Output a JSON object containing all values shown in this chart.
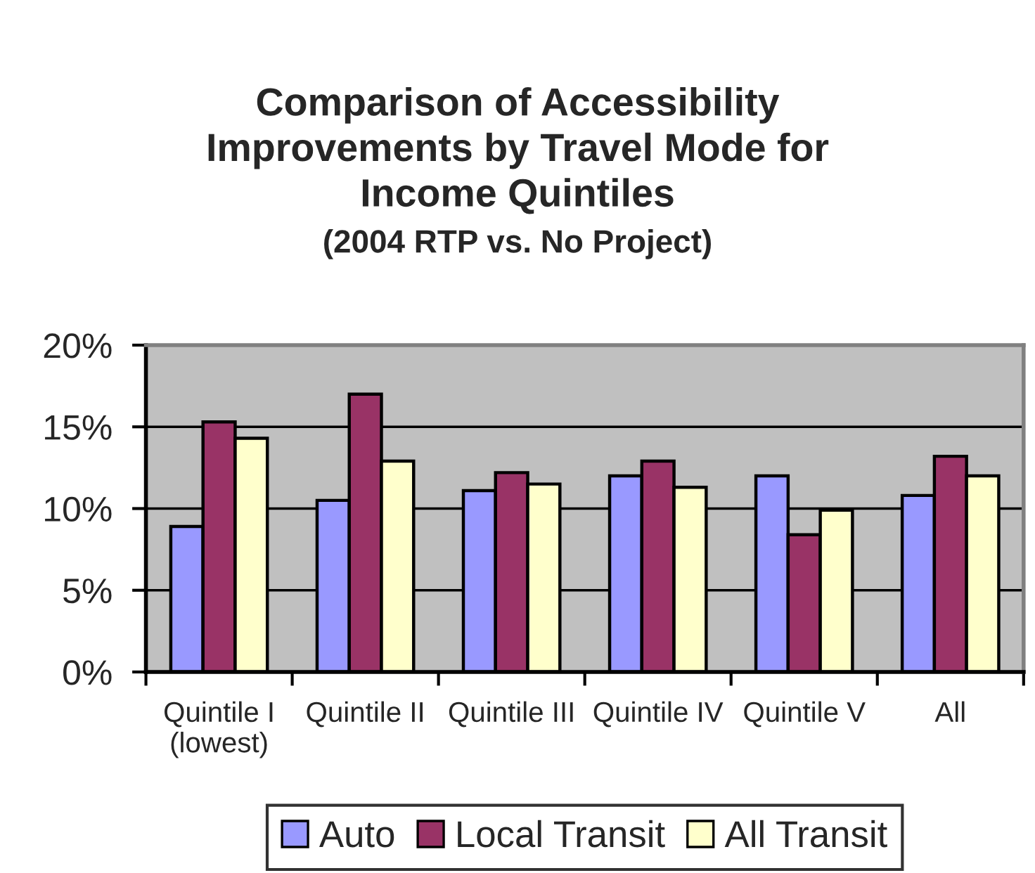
{
  "chart_data": {
    "type": "bar",
    "title": "Comparison of Accessibility\nImprovements by Travel Mode for\nIncome Quintiles",
    "subtitle": "(2004 RTP vs. No Project)",
    "categories": [
      "Quintile I\n(lowest)",
      "Quintile II",
      "Quintile III",
      "Quintile IV",
      "Quintile V",
      "All"
    ],
    "series": [
      {
        "name": "Auto",
        "color": "#9999ff",
        "values": [
          8.9,
          10.5,
          11.1,
          12.0,
          12.0,
          10.8
        ]
      },
      {
        "name": "Local Transit",
        "color": "#993366",
        "values": [
          15.3,
          17.0,
          12.2,
          12.9,
          8.4,
          13.2
        ]
      },
      {
        "name": "All Transit",
        "color": "#ffffcc",
        "values": [
          14.3,
          12.9,
          11.5,
          11.3,
          9.9,
          12.0
        ]
      }
    ],
    "ylim": [
      0,
      20
    ],
    "yticks": [
      {
        "value": 0,
        "label": "0%"
      },
      {
        "value": 5,
        "label": "5%"
      },
      {
        "value": 10,
        "label": "10%"
      },
      {
        "value": 15,
        "label": "15%"
      },
      {
        "value": 20,
        "label": "20%"
      }
    ],
    "grid": "y",
    "legend": "bottom"
  }
}
